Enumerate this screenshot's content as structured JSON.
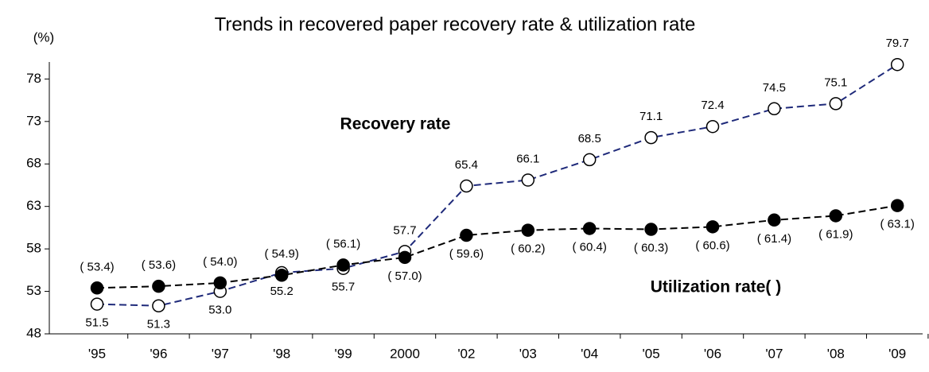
{
  "chart_data": {
    "type": "line",
    "title": "Trends in recovered paper recovery rate & utilization rate",
    "y_label": "(%)",
    "categories": [
      "'95",
      "'96",
      "'97",
      "'98",
      "'99",
      "2000",
      "'02",
      "'03",
      "'04",
      "'05",
      "'06",
      "'07",
      "'08",
      "'09"
    ],
    "series": [
      {
        "name": "Recovery rate",
        "color": "#1f2a7a",
        "marker_fill": "#ffffff",
        "values": [
          51.5,
          51.3,
          53.0,
          55.2,
          55.7,
          57.7,
          65.4,
          66.1,
          68.5,
          71.1,
          72.4,
          74.5,
          75.1,
          79.7
        ],
        "value_labels": [
          "51.5",
          "51.3",
          "53.0",
          "55.2",
          "55.7",
          "57.7",
          "65.4",
          "66.1",
          "68.5",
          "71.1",
          "72.4",
          "74.5",
          "75.1",
          "79.7"
        ]
      },
      {
        "name": "Utilization rate( )",
        "color": "#000000",
        "marker_fill": "#000000",
        "values": [
          53.4,
          53.6,
          54.0,
          54.9,
          56.1,
          57.0,
          59.6,
          60.2,
          60.4,
          60.3,
          60.6,
          61.4,
          61.9,
          63.1
        ],
        "value_labels": [
          "( 53.4)",
          "( 53.6)",
          "( 54.0)",
          "( 54.9)",
          "( 56.1)",
          "( 57.0)",
          "( 59.6)",
          "( 60.2)",
          "( 60.4)",
          "( 60.3)",
          "( 60.6)",
          "( 61.4)",
          "( 61.9)",
          "( 63.1)"
        ]
      }
    ],
    "ylim": [
      48,
      80
    ],
    "yticks": [
      48,
      53,
      58,
      63,
      68,
      73,
      78
    ]
  }
}
